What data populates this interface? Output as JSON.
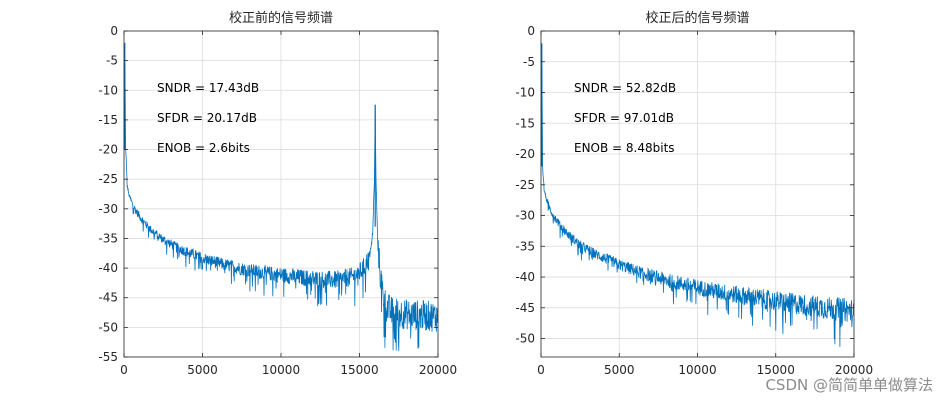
{
  "chart_data": [
    {
      "type": "line",
      "title": "校正前的信号频谱",
      "xlabel": "",
      "ylabel": "",
      "xlim": [
        0,
        20000
      ],
      "ylim": [
        -55,
        0
      ],
      "x_ticks": [
        0,
        5000,
        10000,
        15000,
        20000
      ],
      "y_ticks": [
        0,
        -5,
        -10,
        -15,
        -20,
        -25,
        -30,
        -35,
        -40,
        -45,
        -50,
        -55
      ],
      "grid": true,
      "series_color": "#0072BD",
      "series": [
        {
          "name": "spectrum",
          "x": [
            0,
            50,
            100,
            150,
            200,
            300,
            500,
            800,
            1200,
            1700,
            2500,
            3500,
            5000,
            6500,
            8000,
            9500,
            11000,
            12500,
            13500,
            14500,
            15000,
            15400,
            15700,
            15850,
            15950,
            16000,
            16050,
            16150,
            16300,
            16500,
            16700,
            17000,
            17500,
            18000,
            18500,
            19000,
            19500,
            20000
          ],
          "y": [
            -20,
            -2,
            -20,
            -22,
            -26,
            -27.5,
            -29,
            -30.5,
            -32,
            -33.5,
            -35.2,
            -36.7,
            -38.3,
            -39.5,
            -40.4,
            -41,
            -41.5,
            -41.9,
            -42,
            -41.5,
            -40.8,
            -39.5,
            -37,
            -33.5,
            -25,
            -12.5,
            -25,
            -35,
            -40.5,
            -44.5,
            -46.5,
            -47.3,
            -47.6,
            -47.8,
            -47.9,
            -48,
            -48.1,
            -48.2
          ]
        }
      ],
      "annotations": [
        "SNDR = 17.43dB",
        "SFDR = 20.17dB",
        "ENOB = 2.6bits"
      ]
    },
    {
      "type": "line",
      "title": "校正后的信号频谱",
      "xlabel": "",
      "ylabel": "",
      "xlim": [
        0,
        20000
      ],
      "ylim": [
        -53,
        0
      ],
      "x_ticks": [
        0,
        5000,
        10000,
        15000,
        20000
      ],
      "y_ticks": [
        0,
        -5,
        -10,
        -15,
        -20,
        -25,
        -30,
        -35,
        -40,
        -45,
        -50
      ],
      "grid": true,
      "series_color": "#0072BD",
      "series": [
        {
          "name": "spectrum",
          "x": [
            0,
            50,
            100,
            150,
            200,
            300,
            500,
            800,
            1200,
            1700,
            2500,
            3500,
            5000,
            6500,
            8000,
            9500,
            11000,
            12500,
            14000,
            15500,
            17000,
            18500,
            20000
          ],
          "y": [
            -22,
            -2,
            -22,
            -24,
            -25.5,
            -27,
            -28.5,
            -30,
            -31.5,
            -33,
            -34.8,
            -36.3,
            -38,
            -39.4,
            -40.5,
            -41.4,
            -42.2,
            -42.9,
            -43.5,
            -44.1,
            -44.6,
            -45.1,
            -45.5
          ]
        }
      ],
      "annotations": [
        "SNDR = 52.82dB",
        "SFDR = 97.01dB",
        "ENOB = 8.48bits"
      ]
    }
  ],
  "watermark": "CSDN @简简单单做算法",
  "colors": {
    "line": "#0072BD",
    "grid": "#dcdcdc",
    "axes": "#262626"
  }
}
